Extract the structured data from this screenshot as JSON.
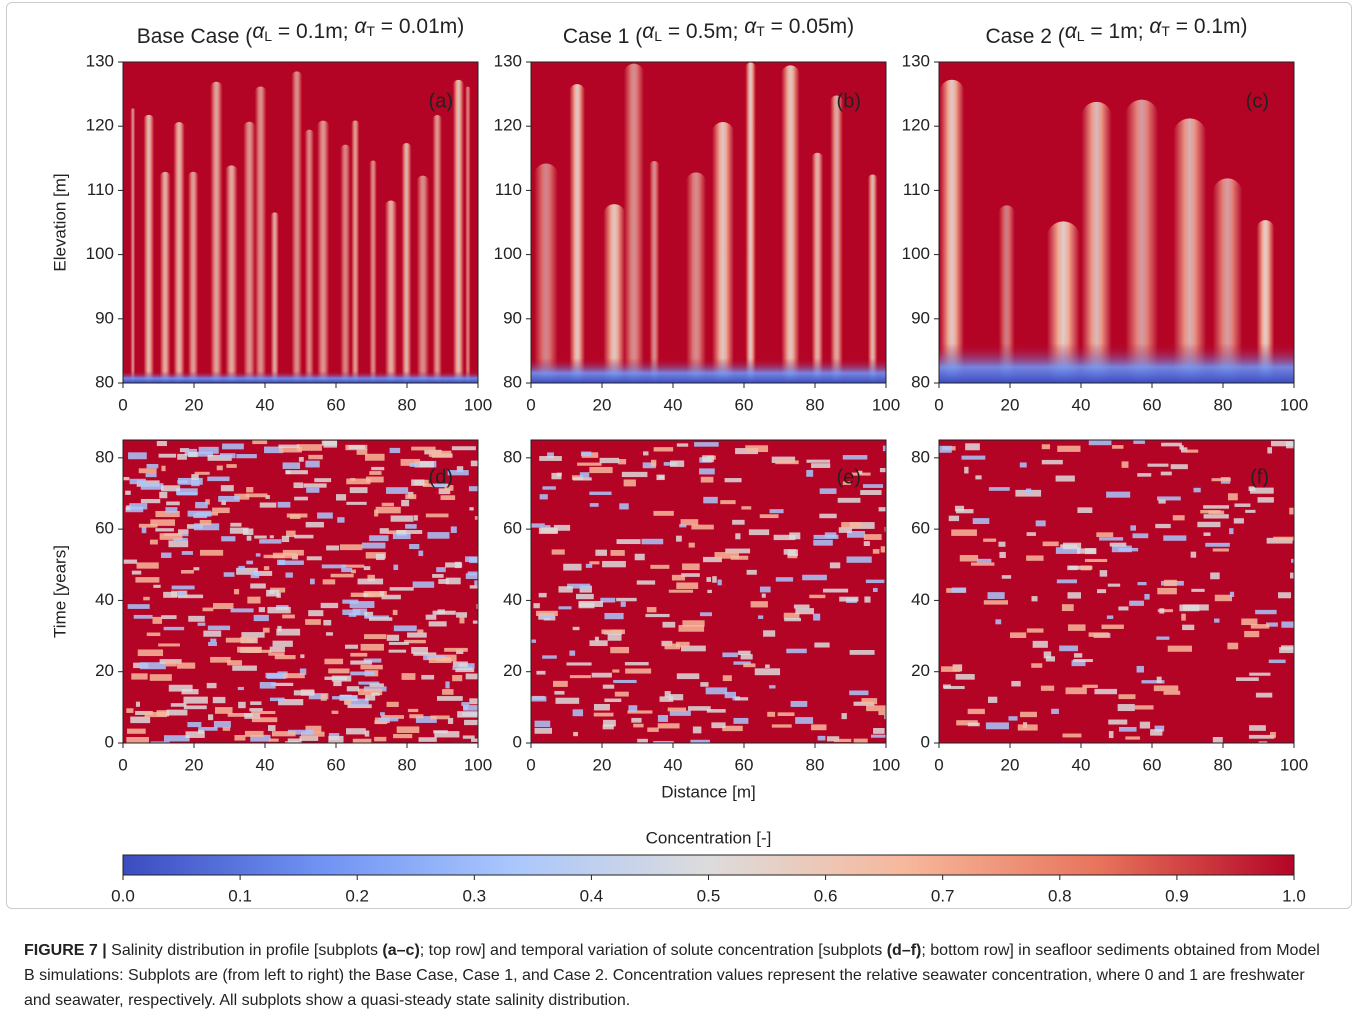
{
  "figure": {
    "panels": [
      {
        "title_parts": [
          "Base Case (",
          {
            "text": "α"
          },
          {
            "text": "L",
            "sub": true
          },
          " = 0.1m; ",
          {
            "text": "α"
          },
          {
            "text": "T",
            "sub": true
          },
          " = 0.01m)"
        ],
        "label": "(a)",
        "ylabel": "Elevation [m]",
        "xlim": [
          0,
          100
        ],
        "xticks": [
          0,
          20,
          40,
          60,
          80,
          100
        ],
        "ylim": [
          80,
          130
        ],
        "yticks": [
          80,
          90,
          100,
          110,
          120,
          130
        ]
      },
      {
        "title_parts": [
          "Case 1 (",
          {
            "text": "α"
          },
          {
            "text": "L",
            "sub": true
          },
          " = 0.5m; ",
          {
            "text": "α"
          },
          {
            "text": "T",
            "sub": true
          },
          " = 0.05m)"
        ],
        "label": "(b)",
        "xlim": [
          0,
          100
        ],
        "xticks": [
          0,
          20,
          40,
          60,
          80,
          100
        ],
        "ylim": [
          80,
          130
        ],
        "yticks": [
          80,
          90,
          100,
          110,
          120,
          130
        ]
      },
      {
        "title_parts": [
          "Case 2 (",
          {
            "text": "α"
          },
          {
            "text": "L",
            "sub": true
          },
          " = 1m; ",
          {
            "text": "α"
          },
          {
            "text": "T",
            "sub": true
          },
          " = 0.1m)"
        ],
        "label": "(c)",
        "xlim": [
          0,
          100
        ],
        "xticks": [
          0,
          20,
          40,
          60,
          80,
          100
        ],
        "ylim": [
          80,
          130
        ],
        "yticks": [
          80,
          90,
          100,
          110,
          120,
          130
        ]
      },
      {
        "label": "(d)",
        "ylabel": "Time [years]",
        "xlim": [
          0,
          100
        ],
        "xticks": [
          0,
          20,
          40,
          60,
          80,
          100
        ],
        "ylim": [
          0,
          85
        ],
        "yticks": [
          0,
          20,
          40,
          60,
          80
        ]
      },
      {
        "label": "(e)",
        "xlabel": "Distance [m]",
        "xlim": [
          0,
          100
        ],
        "xticks": [
          0,
          20,
          40,
          60,
          80,
          100
        ],
        "ylim": [
          0,
          85
        ],
        "yticks": [
          0,
          20,
          40,
          60,
          80
        ]
      },
      {
        "label": "(f)",
        "xlim": [
          0,
          100
        ],
        "xticks": [
          0,
          20,
          40,
          60,
          80,
          100
        ],
        "ylim": [
          0,
          85
        ],
        "yticks": [
          0,
          20,
          40,
          60,
          80
        ]
      }
    ],
    "colorbar": {
      "label": "Concentration [-]",
      "lim": [
        0,
        1
      ],
      "colors": [
        "#3b4cc0",
        "#6f92f3",
        "#aac7fd",
        "#dddcdc",
        "#f7b89c",
        "#e7745b",
        "#b40426"
      ],
      "ticks": [
        {
          "value": 0,
          "label": "0.0"
        },
        {
          "value": 0.1,
          "label": "0.1"
        },
        {
          "value": 0.2,
          "label": "0.2"
        },
        {
          "value": 0.3,
          "label": "0.3"
        },
        {
          "value": 0.4,
          "label": "0.4"
        },
        {
          "value": 0.5,
          "label": "0.5"
        },
        {
          "value": 0.6,
          "label": "0.6"
        },
        {
          "value": 0.7,
          "label": "0.7"
        },
        {
          "value": 0.8,
          "label": "0.8"
        },
        {
          "value": 0.9,
          "label": "0.9"
        },
        {
          "value": 1,
          "label": "1.0"
        }
      ]
    }
  },
  "caption": [
    {
      "text": "FIGURE 7 |",
      "bold": true
    },
    {
      "text": " Salinity distribution in profile [subplots "
    },
    {
      "text": "(a–c)",
      "bold": true
    },
    {
      "text": "; top row] and temporal variation of solute concentration [subplots "
    },
    {
      "text": "(d–f)",
      "bold": true
    },
    {
      "text": "; bottom row] in seafloor sediments obtained from Model B simulations: Subplots are (from left to right) the Base Case, Case 1, and Case 2. Concentration values represent the relative seawater concentration, where 0 and 1 are freshwater and seawater, respectively. All subplots show a quasi-steady state salinity distribution."
    }
  ]
}
